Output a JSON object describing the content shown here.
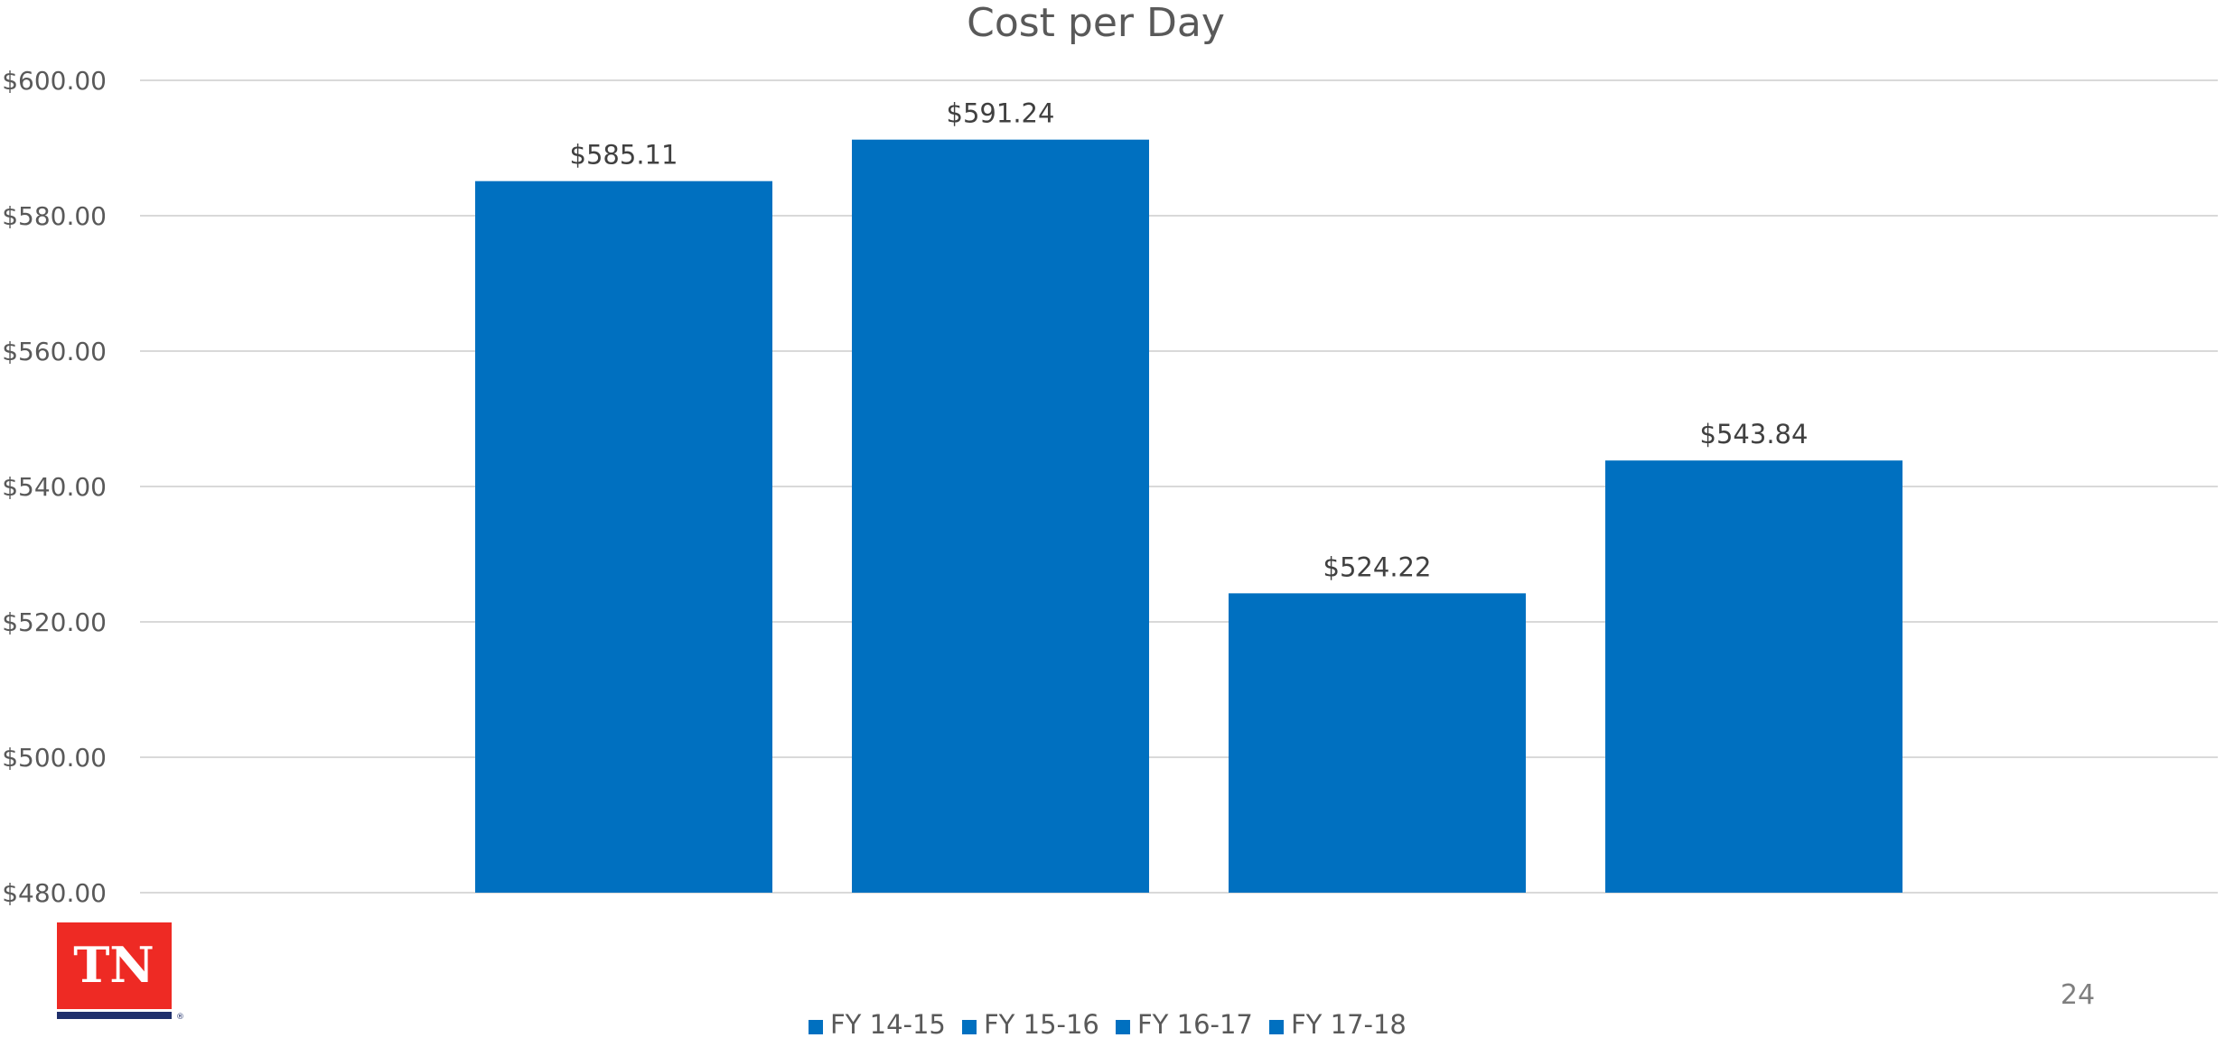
{
  "page": {
    "number": "24"
  },
  "logo": {
    "text": "TN",
    "mark": "®",
    "bg_color": "#ee2a24",
    "bar_color": "#1f2f6b"
  },
  "chart_data": {
    "type": "bar",
    "title": "Cost per Day",
    "xlabel": "",
    "ylabel": "",
    "ylim": [
      480,
      600
    ],
    "y_ticks": [
      480,
      500,
      520,
      540,
      560,
      580,
      600
    ],
    "y_tick_labels": [
      "$480.00",
      "$500.00",
      "$520.00",
      "$540.00",
      "$560.00",
      "$580.00",
      "$600.00"
    ],
    "series": [
      {
        "name": "FY 14-15",
        "value": 585.11,
        "label": "$585.11",
        "color": "#0070c0"
      },
      {
        "name": "FY 15-16",
        "value": 591.24,
        "label": "$591.24",
        "color": "#0070c0"
      },
      {
        "name": "FY 16-17",
        "value": 524.22,
        "label": "$524.22",
        "color": "#0070c0"
      },
      {
        "name": "FY 17-18",
        "value": 543.84,
        "label": "$543.84",
        "color": "#0070c0"
      }
    ],
    "grid": true,
    "gridline_color": "#d9d9d9",
    "legend_position": "bottom"
  }
}
